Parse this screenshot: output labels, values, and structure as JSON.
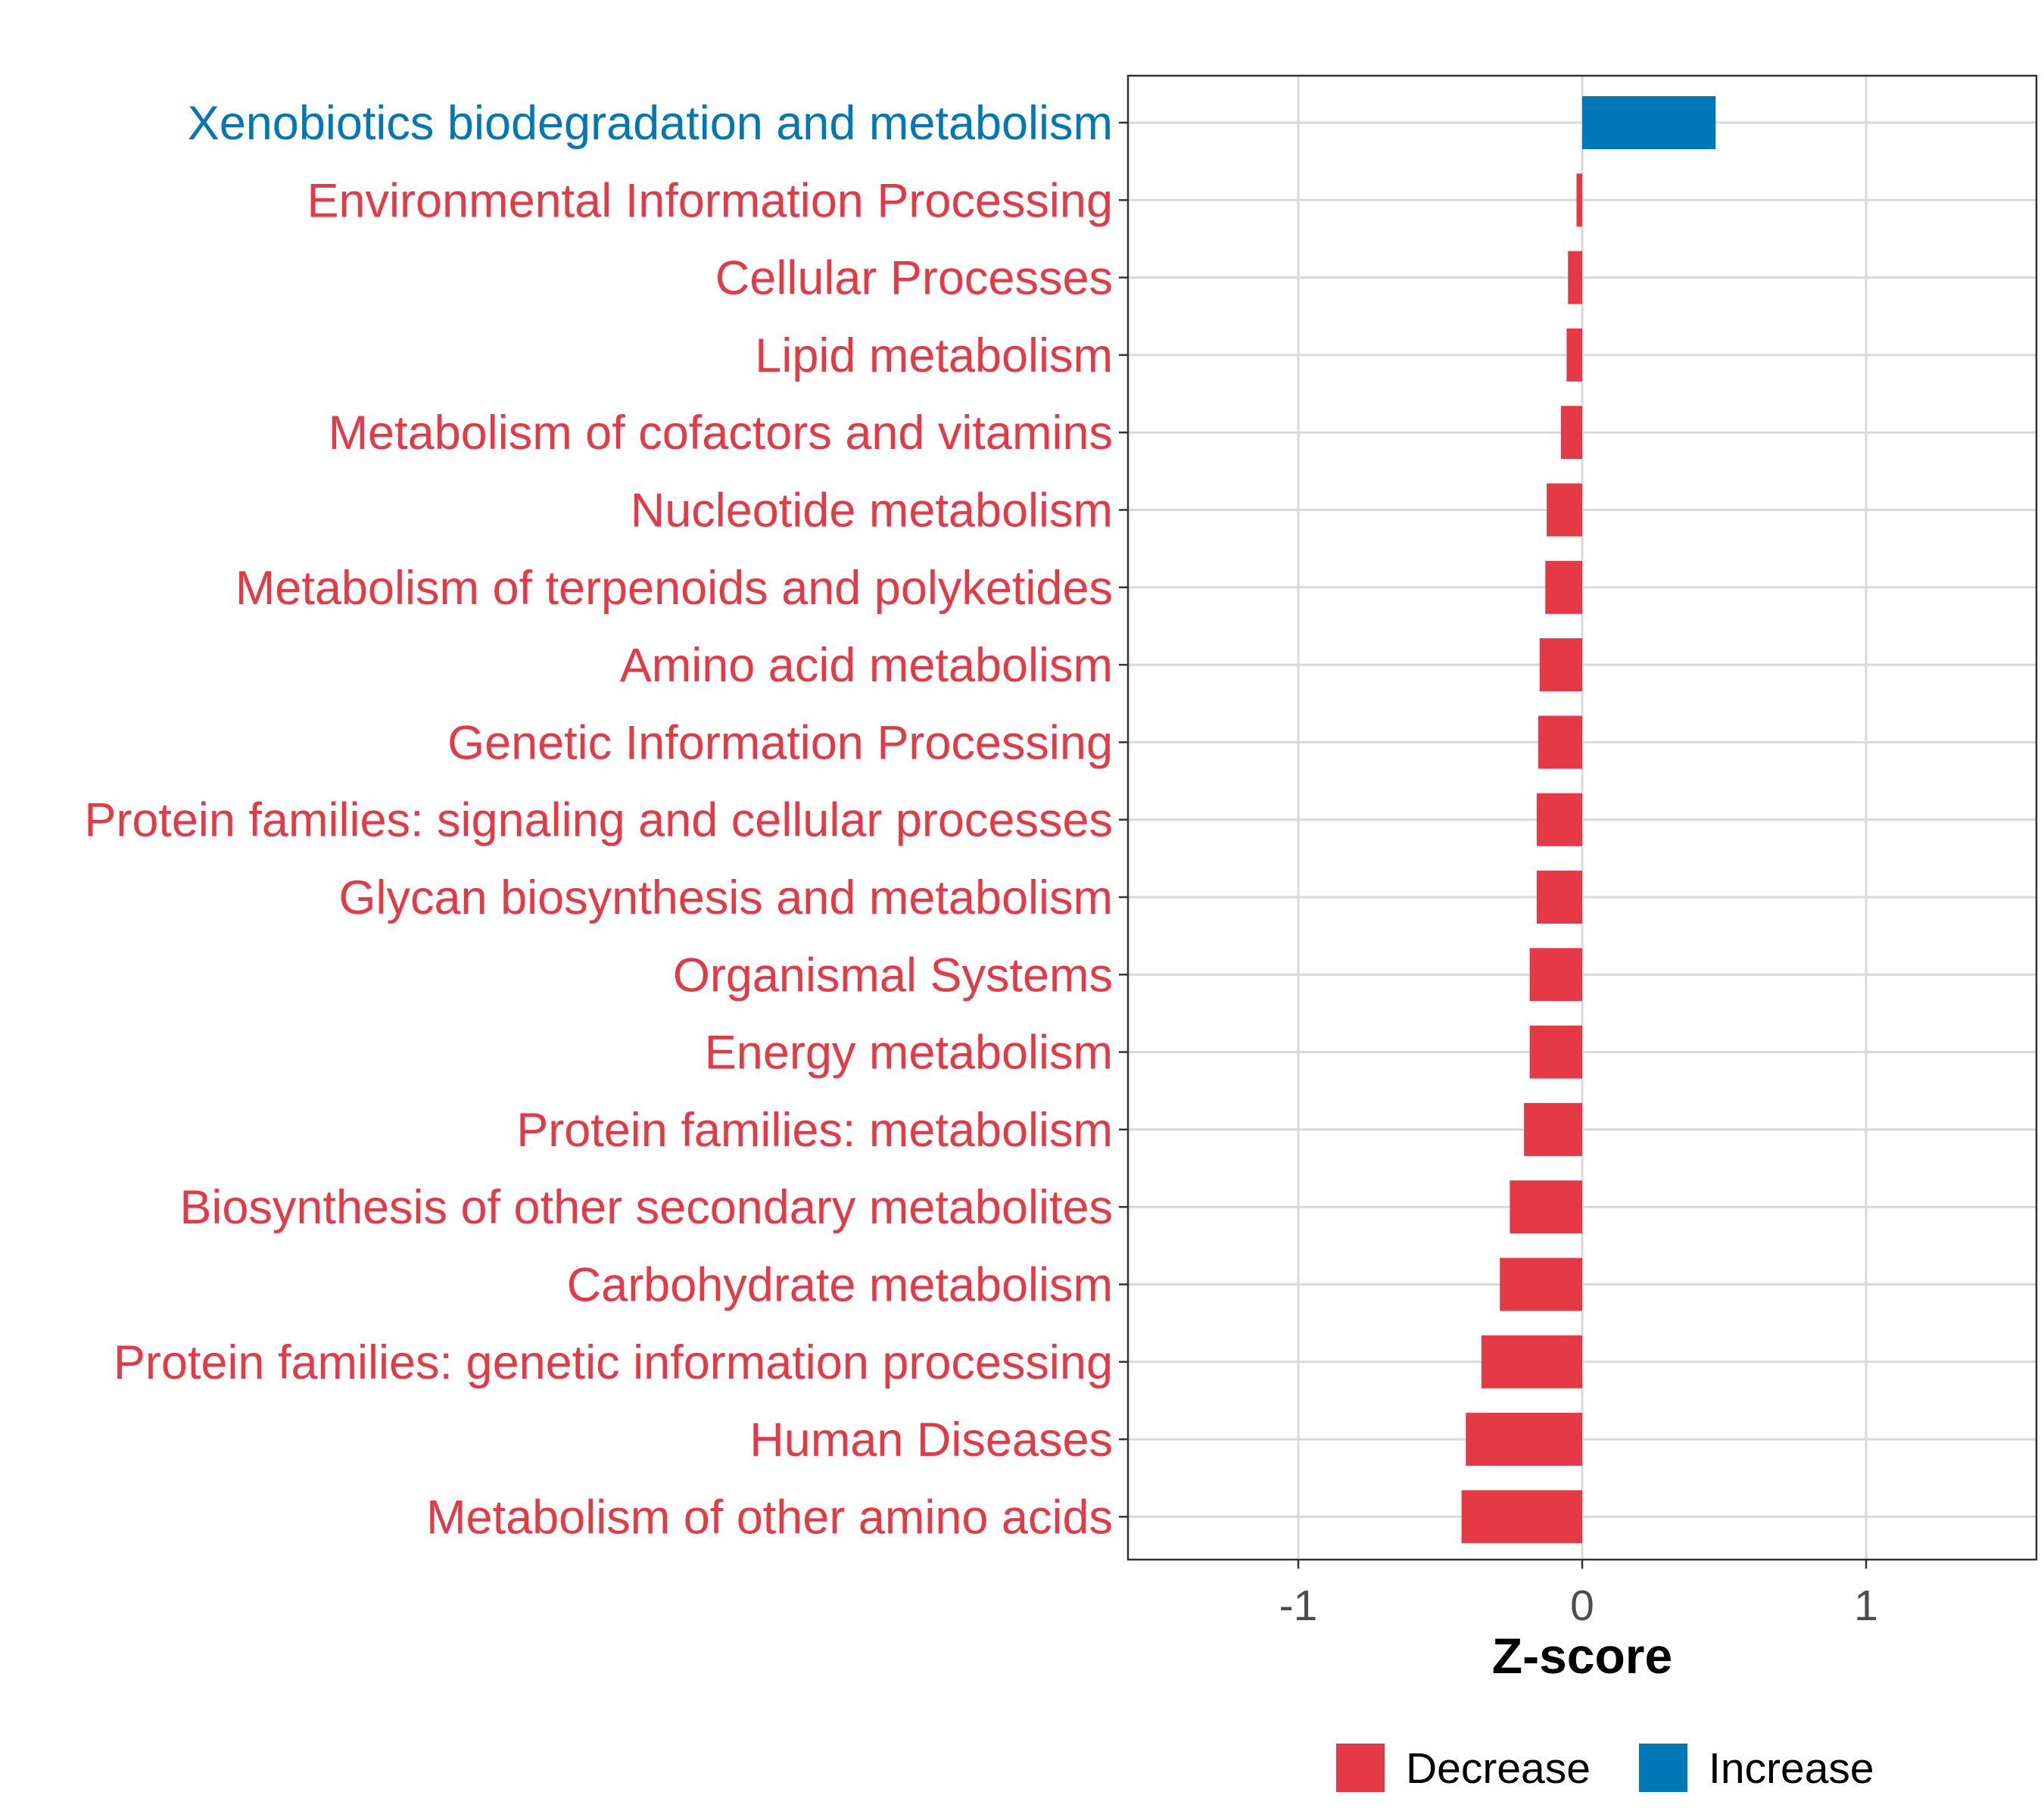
{
  "chart_data": {
    "type": "bar",
    "orientation": "horizontal",
    "categories": [
      "Xenobiotics biodegradation and metabolism",
      "Environmental Information Processing",
      "Cellular Processes",
      "Lipid metabolism",
      "Metabolism of cofactors and vitamins",
      "Nucleotide metabolism",
      "Metabolism of terpenoids and polyketides",
      "Amino acid metabolism",
      "Genetic Information Processing",
      "Protein families: signaling and cellular processes",
      "Glycan biosynthesis and metabolism",
      "Organismal Systems",
      "Energy metabolism",
      "Protein families: metabolism",
      "Biosynthesis of other secondary metabolites",
      "Carbohydrate metabolism",
      "Protein families: genetic information processing",
      "Human Diseases",
      "Metabolism of other amino acids"
    ],
    "values": [
      0.47,
      -0.02,
      -0.05,
      -0.055,
      -0.075,
      -0.125,
      -0.13,
      -0.15,
      -0.155,
      -0.16,
      -0.16,
      -0.185,
      -0.185,
      -0.205,
      -0.255,
      -0.29,
      -0.355,
      -0.41,
      -0.425
    ],
    "groups": [
      "Increase",
      "Decrease",
      "Decrease",
      "Decrease",
      "Decrease",
      "Decrease",
      "Decrease",
      "Decrease",
      "Decrease",
      "Decrease",
      "Decrease",
      "Decrease",
      "Decrease",
      "Decrease",
      "Decrease",
      "Decrease",
      "Decrease",
      "Decrease",
      "Decrease"
    ],
    "xlabel": "Z-score",
    "ylabel": "",
    "xlim": [
      -1.6,
      1.6
    ],
    "xticks": [
      -1,
      0,
      1
    ],
    "xtick_labels": [
      "-1",
      "0",
      "1"
    ],
    "grid": true,
    "legend": {
      "position": "bottom",
      "entries": [
        {
          "name": "Decrease",
          "color": "#e63946"
        },
        {
          "name": "Increase",
          "color": "#0077b6"
        }
      ]
    },
    "colors": {
      "Decrease": "#e63946",
      "Increase": "#0077b6"
    }
  }
}
